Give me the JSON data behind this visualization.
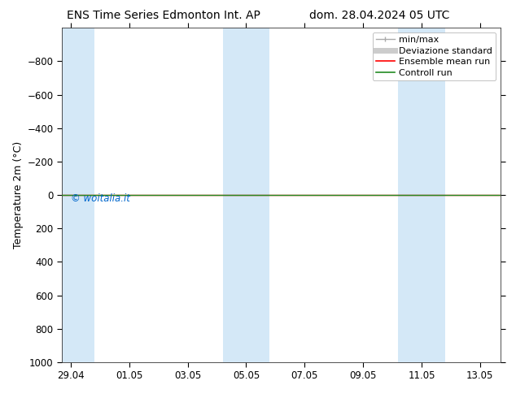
{
  "title_left": "ENS Time Series Edmonton Int. AP",
  "title_right": "dom. 28.04.2024 05 UTC",
  "ylabel": "Temperature 2m (°C)",
  "watermark": "© woitalia.it",
  "watermark_color": "#0066cc",
  "ylim_bottom": 1000,
  "ylim_top": -1000,
  "yticks": [
    -800,
    -600,
    -400,
    -200,
    0,
    200,
    400,
    600,
    800,
    1000
  ],
  "x_tick_labels": [
    "29.04",
    "01.05",
    "03.05",
    "05.05",
    "07.05",
    "09.05",
    "11.05",
    "13.05"
  ],
  "x_tick_positions": [
    0,
    2,
    4,
    6,
    8,
    10,
    12,
    14
  ],
  "x_min": -0.3,
  "x_max": 14.7,
  "background_color": "#ffffff",
  "plot_bg_color": "#ffffff",
  "shaded_bands": [
    {
      "x_start": -0.3,
      "x_end": 0.8,
      "color": "#d4e8f7"
    },
    {
      "x_start": 5.2,
      "x_end": 6.8,
      "color": "#d4e8f7"
    },
    {
      "x_start": 11.2,
      "x_end": 12.8,
      "color": "#d4e8f7"
    }
  ],
  "control_run_y": 0,
  "control_run_color": "#228B22",
  "ensemble_mean_color": "#ff0000",
  "legend_entries": [
    {
      "label": "min/max",
      "color": "#aaaaaa",
      "lw": 1.0
    },
    {
      "label": "Deviazione standard",
      "color": "#cccccc",
      "lw": 5
    },
    {
      "label": "Ensemble mean run",
      "color": "#ff0000",
      "lw": 1.2
    },
    {
      "label": "Controll run",
      "color": "#228B22",
      "lw": 1.2
    }
  ],
  "tick_label_fontsize": 8.5,
  "axis_label_fontsize": 9,
  "title_fontsize": 10,
  "legend_fontsize": 8,
  "watermark_fontsize": 8.5
}
